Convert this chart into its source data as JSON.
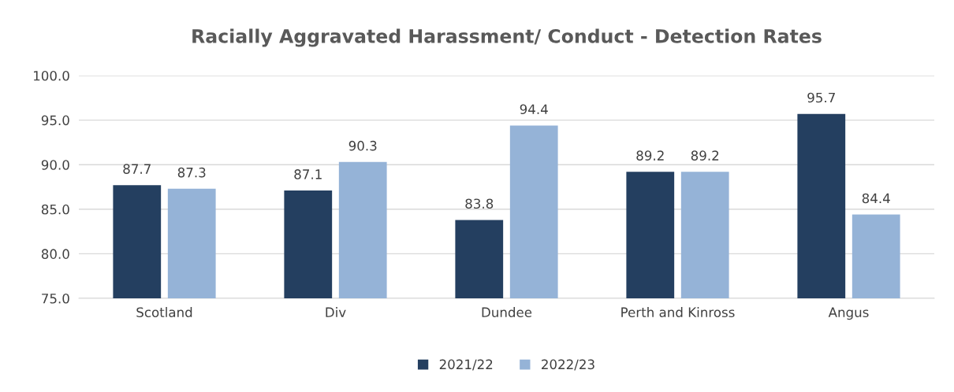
{
  "chart_data": {
    "type": "bar",
    "title": "Racially Aggravated Harassment/ Conduct - Detection Rates",
    "categories": [
      "Scotland",
      "Div",
      "Dundee",
      "Perth and Kinross",
      "Angus"
    ],
    "series": [
      {
        "name": "2021/22",
        "color": "#243f60",
        "values": [
          87.7,
          87.1,
          83.8,
          89.2,
          95.7
        ]
      },
      {
        "name": "2022/23",
        "color": "#95b3d7",
        "values": [
          87.3,
          90.3,
          94.4,
          89.2,
          84.4
        ]
      }
    ],
    "ylim": [
      75,
      100
    ],
    "yticks": [
      {
        "value": 75,
        "label": "75.0"
      },
      {
        "value": 80,
        "label": "80.0"
      },
      {
        "value": 85,
        "label": "85.0"
      },
      {
        "value": 90,
        "label": "90.0"
      },
      {
        "value": 95,
        "label": "95.0"
      },
      {
        "value": 100,
        "label": "100.0"
      }
    ],
    "grid": "y",
    "legend": "bottom",
    "data_labels": true
  }
}
